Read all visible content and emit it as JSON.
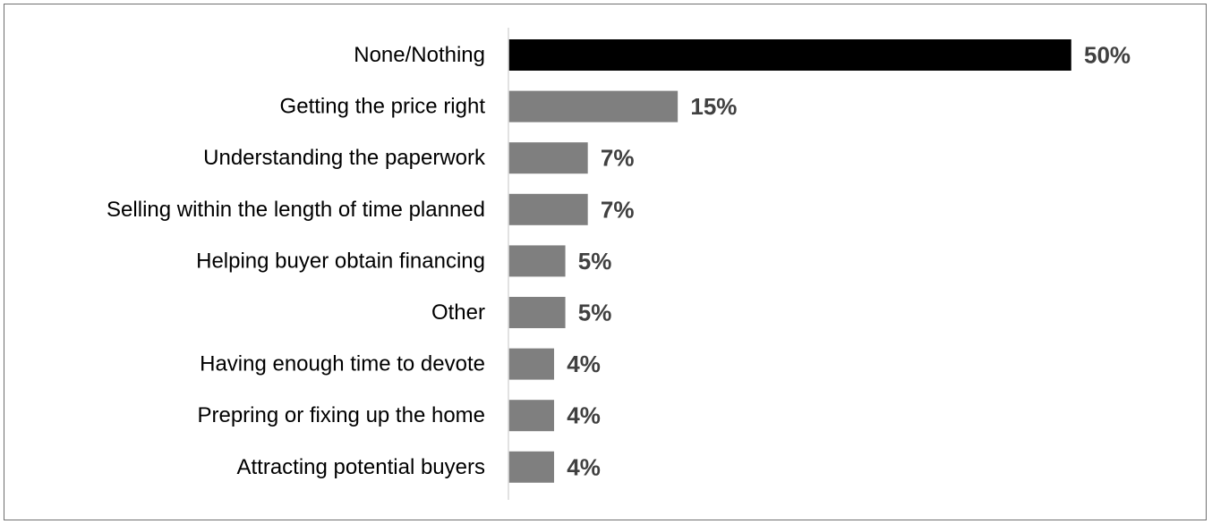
{
  "chart_data": {
    "type": "bar",
    "orientation": "horizontal",
    "categories": [
      "None/Nothing",
      "Getting the price right",
      "Understanding the paperwork",
      "Selling within the length of time planned",
      "Helping buyer obtain financing",
      "Other",
      "Having enough time to devote",
      "Prepring or fixing up the home",
      "Attracting potential buyers"
    ],
    "values": [
      50,
      15,
      7,
      7,
      5,
      5,
      4,
      4,
      4
    ],
    "value_labels": [
      "50%",
      "15%",
      "7%",
      "7%",
      "5%",
      "5%",
      "4%",
      "4%",
      "4%"
    ],
    "unit": "%",
    "xlim": [
      0,
      50
    ],
    "highlight_index": 0,
    "colors": {
      "highlight_bar": "#000000",
      "bar": "#7f7f7f",
      "highlight_label": "#404040",
      "label": "#404040",
      "axis": "#d9d9d9"
    },
    "grid": false,
    "legend": "none",
    "title": "",
    "xlabel": "",
    "ylabel": ""
  }
}
